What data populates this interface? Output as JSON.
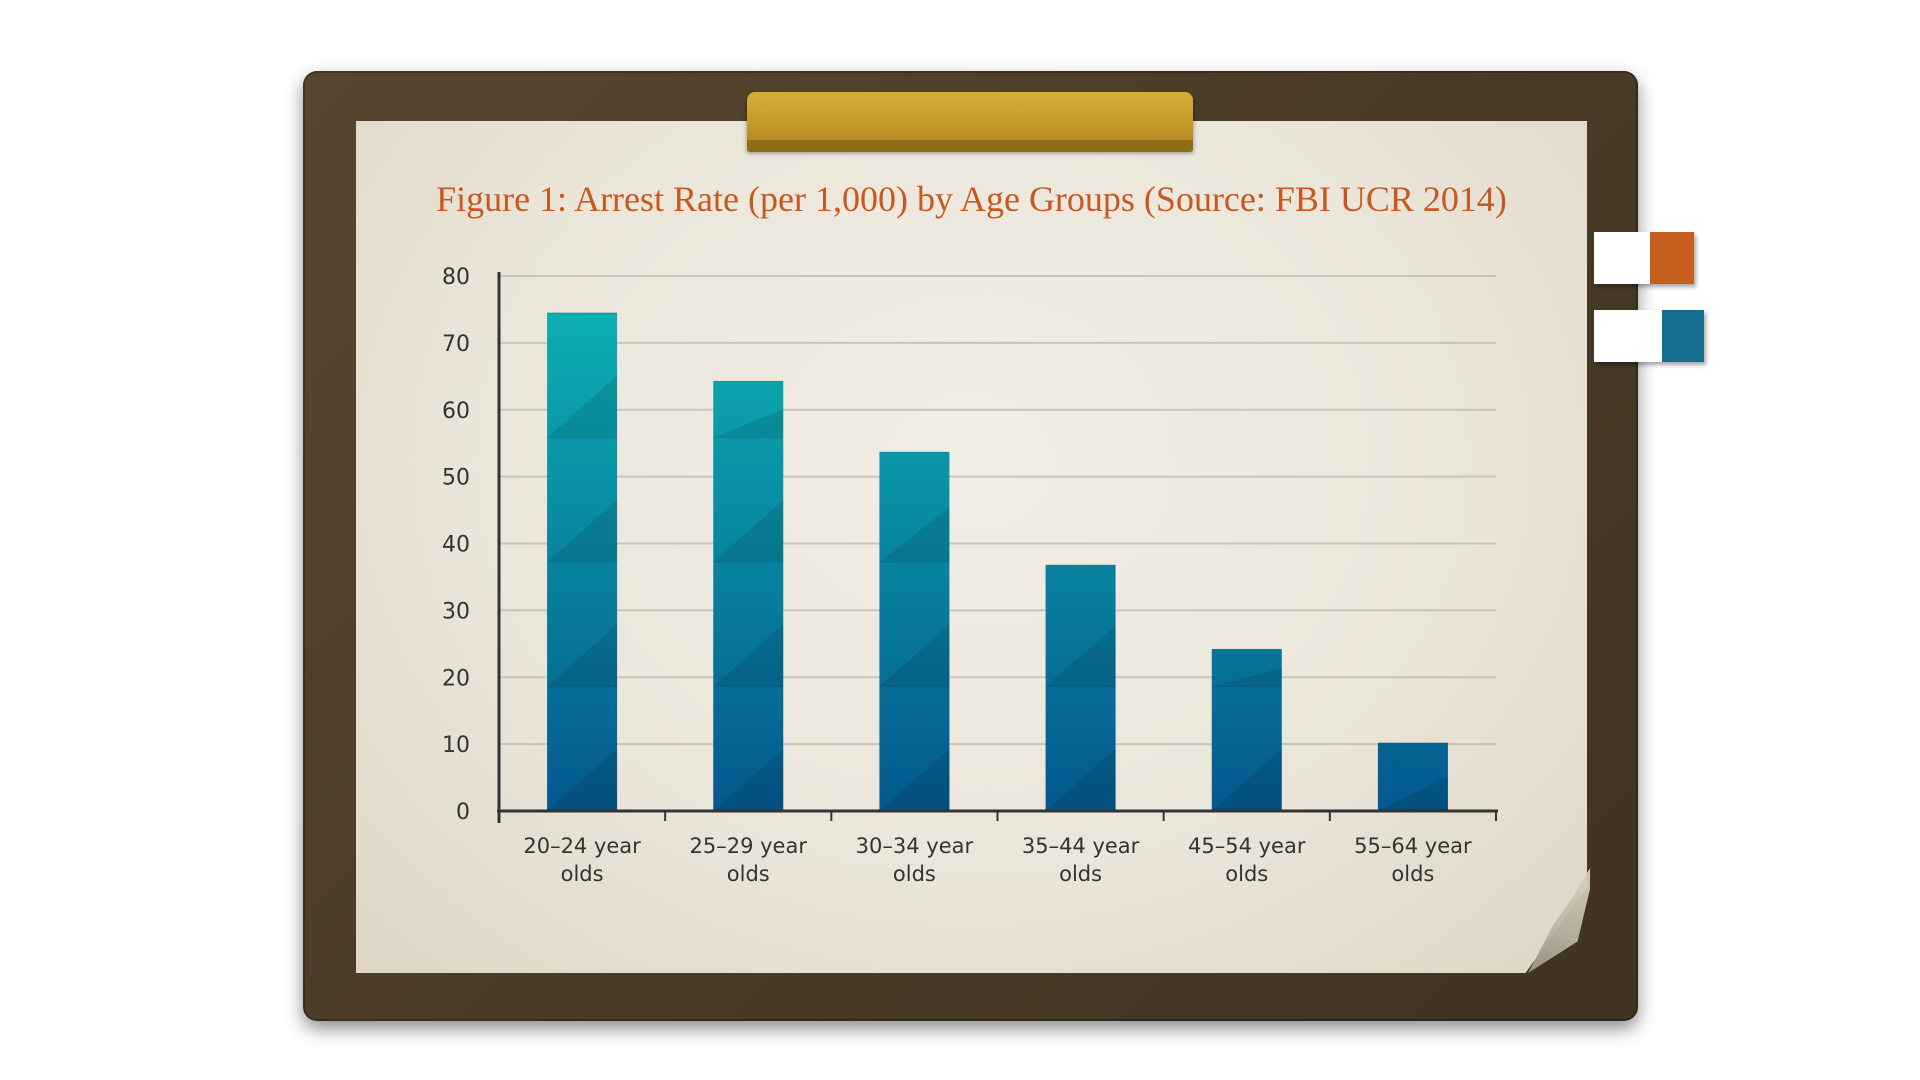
{
  "colors": {
    "title": "#c9581f",
    "tab_orange": "#c65e1f",
    "tab_blue": "#156e90",
    "bar_top": "#0db5b4",
    "bar_bottom": "#04588f"
  },
  "chart_data": {
    "type": "bar",
    "title": "Figure 1: Arrest Rate (per 1,000) by Age Groups (Source: FBI UCR 2014)",
    "xlabel": "",
    "ylabel": "",
    "categories": [
      [
        "20–24 year",
        "olds"
      ],
      [
        "25–29 year",
        "olds"
      ],
      [
        "30–34 year",
        "olds"
      ],
      [
        "35–44 year",
        "olds"
      ],
      [
        "45–54 year",
        "olds"
      ],
      [
        "55–64 year",
        "olds"
      ]
    ],
    "values": [
      74.5,
      64.3,
      53.7,
      36.8,
      24.2,
      10.2
    ],
    "ylim": [
      0,
      80
    ],
    "yticks": [
      "0",
      "10",
      "20",
      "30",
      "40",
      "50",
      "60",
      "70",
      "80"
    ],
    "grid": true,
    "legend": "none"
  }
}
